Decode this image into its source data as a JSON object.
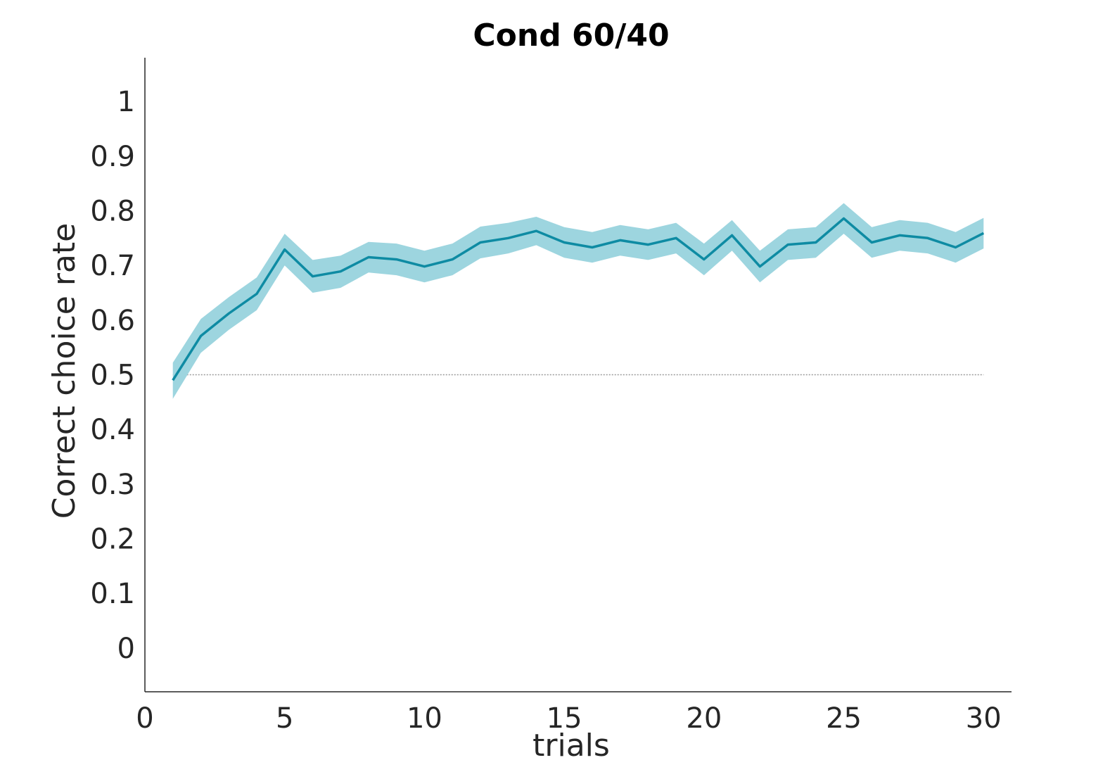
{
  "chart_data": {
    "type": "line",
    "title": "Cond 60/40",
    "xlabel": "trials",
    "ylabel": "Correct choice rate",
    "xlim": [
      0,
      31
    ],
    "ylim": [
      -0.08,
      1.08
    ],
    "xticks": [
      0,
      5,
      10,
      15,
      20,
      25,
      30
    ],
    "xtick_labels": [
      "0",
      "5",
      "10",
      "15",
      "20",
      "25",
      "30"
    ],
    "yticks": [
      0,
      0.1,
      0.2,
      0.3,
      0.4,
      0.5,
      0.6,
      0.7,
      0.8,
      0.9,
      1
    ],
    "ytick_labels": [
      "0",
      "0.1",
      "0.2",
      "0.3",
      "0.4",
      "0.5",
      "0.6",
      "0.7",
      "0.8",
      "0.9",
      "1"
    ],
    "grid": false,
    "reference_line": {
      "y": 0.5,
      "x_range": [
        1,
        30
      ],
      "style": "dotted",
      "color": "#999999"
    },
    "series": [
      {
        "color": "#0e8ba3",
        "band_color": "#9dd5df",
        "x": [
          1,
          2,
          3,
          4,
          5,
          6,
          7,
          8,
          9,
          10,
          11,
          12,
          13,
          14,
          15,
          16,
          17,
          18,
          19,
          20,
          21,
          22,
          23,
          24,
          25,
          26,
          27,
          28,
          29,
          30
        ],
        "y": [
          0.49,
          0.571,
          0.612,
          0.648,
          0.729,
          0.68,
          0.689,
          0.715,
          0.711,
          0.698,
          0.711,
          0.742,
          0.75,
          0.763,
          0.742,
          0.733,
          0.746,
          0.738,
          0.75,
          0.711,
          0.755,
          0.698,
          0.738,
          0.742,
          0.786,
          0.742,
          0.755,
          0.75,
          0.733,
          0.759
        ],
        "lower": [
          0.456,
          0.54,
          0.582,
          0.618,
          0.7,
          0.65,
          0.659,
          0.687,
          0.682,
          0.669,
          0.682,
          0.713,
          0.722,
          0.737,
          0.714,
          0.705,
          0.718,
          0.71,
          0.722,
          0.682,
          0.727,
          0.669,
          0.71,
          0.714,
          0.758,
          0.714,
          0.727,
          0.722,
          0.705,
          0.731
        ],
        "upper": [
          0.522,
          0.602,
          0.642,
          0.678,
          0.758,
          0.71,
          0.718,
          0.743,
          0.74,
          0.727,
          0.74,
          0.771,
          0.778,
          0.789,
          0.77,
          0.761,
          0.774,
          0.766,
          0.778,
          0.74,
          0.783,
          0.727,
          0.766,
          0.77,
          0.814,
          0.77,
          0.783,
          0.778,
          0.761,
          0.787
        ]
      }
    ]
  }
}
